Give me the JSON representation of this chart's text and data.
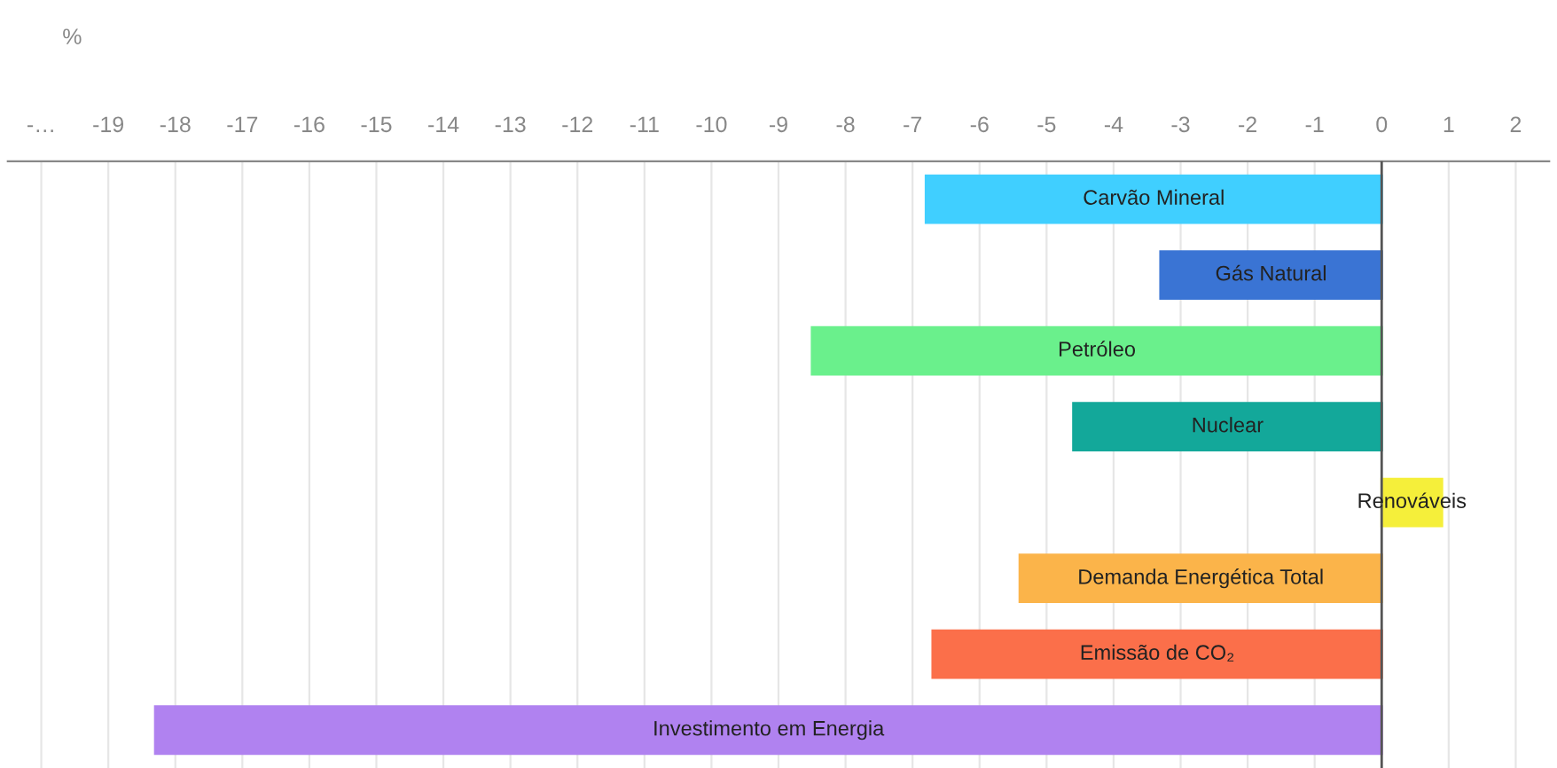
{
  "chart_data": {
    "type": "bar",
    "orientation": "horizontal",
    "xlabel": "%",
    "categories": [
      "Carvão Mineral",
      "Gás Natural",
      "Petróleo",
      "Nuclear",
      "Renováveis",
      "Demanda Energética Total",
      "Emissão de CO₂",
      "Investimento em Energia"
    ],
    "values": [
      -6.8,
      -3.3,
      -8.5,
      -4.6,
      0.9,
      -5.4,
      -6.7,
      -18.3
    ],
    "colors": [
      "#40cfff",
      "#3a74d4",
      "#6af08c",
      "#13a89a",
      "#f5ef3a",
      "#fbb44a",
      "#fb6f4a",
      "#b082f0"
    ],
    "xlim": [
      -20.5,
      2.5
    ],
    "xticks": [
      {
        "value": -20,
        "label": "-…"
      },
      -19,
      -18,
      -17,
      -16,
      -15,
      -14,
      -13,
      -12,
      -11,
      -10,
      -9,
      -8,
      -7,
      -6,
      -5,
      -4,
      -3,
      -2,
      -1,
      0,
      1,
      2
    ],
    "grid": "x",
    "ref_lines": [
      {
        "axis": "x",
        "value": 0,
        "color": "#555555"
      }
    ]
  }
}
